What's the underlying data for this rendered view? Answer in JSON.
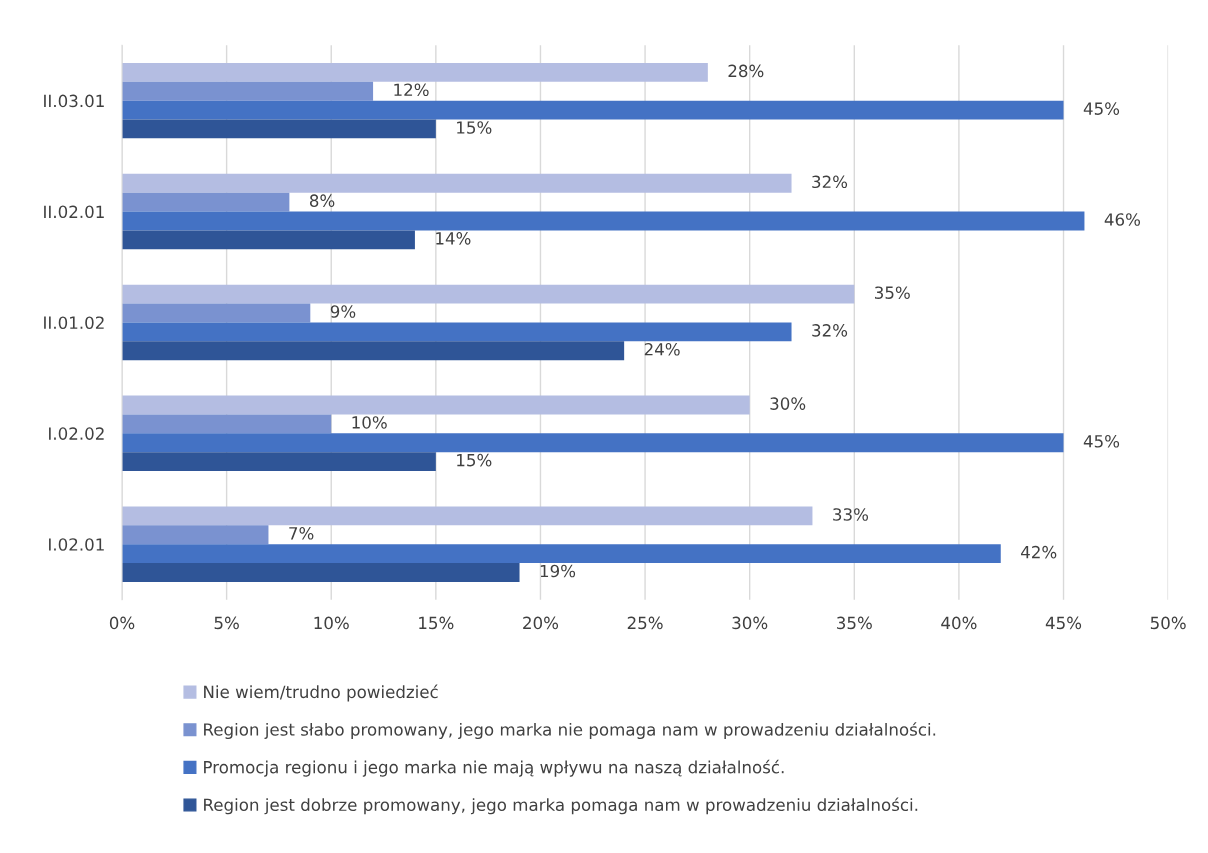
{
  "chart_data": {
    "type": "bar",
    "orientation": "horizontal",
    "categories": [
      "II.03.01",
      "II.02.01",
      "II.01.02",
      "I.02.02",
      "I.02.01"
    ],
    "series": [
      {
        "name": "Nie wiem/trudno powiedzieć",
        "color": "#b4bde2",
        "values": [
          28,
          32,
          35,
          30,
          33
        ],
        "value_labels": [
          "28%",
          "32%",
          "35%",
          "30%",
          "33%"
        ]
      },
      {
        "name": "Region jest słabo promowany, jego marka nie pomaga nam w prowadzeniu działalności.",
        "color": "#7a92d0",
        "values": [
          12,
          8,
          9,
          10,
          7
        ],
        "value_labels": [
          "12%",
          "8%",
          "9%",
          "10%",
          "7%"
        ]
      },
      {
        "name": "Promocja regionu i jego marka nie mają wpływu na naszą działalność.",
        "color": "#4472c4",
        "values": [
          45,
          46,
          32,
          45,
          42
        ],
        "value_labels": [
          "45%",
          "46%",
          "32%",
          "45%",
          "42%"
        ]
      },
      {
        "name": "Region jest dobrze promowany, jego marka pomaga nam w prowadzeniu działalności.",
        "color": "#2f5597",
        "values": [
          15,
          14,
          24,
          15,
          19
        ],
        "value_labels": [
          "15%",
          "14%",
          "24%",
          "15%",
          "19%"
        ]
      }
    ],
    "xlim": [
      0,
      50
    ],
    "xticks": [
      {
        "value": 0,
        "label": "0%"
      },
      {
        "value": 5,
        "label": "5%"
      },
      {
        "value": 10,
        "label": "10%"
      },
      {
        "value": 15,
        "label": "15%"
      },
      {
        "value": 20,
        "label": "20%"
      },
      {
        "value": 25,
        "label": "25%"
      },
      {
        "value": 30,
        "label": "30%"
      },
      {
        "value": 35,
        "label": "35%"
      },
      {
        "value": 40,
        "label": "40%"
      },
      {
        "value": 45,
        "label": "45%"
      },
      {
        "value": 50,
        "label": "50%"
      }
    ],
    "grid": "x",
    "legend": "bottom"
  }
}
